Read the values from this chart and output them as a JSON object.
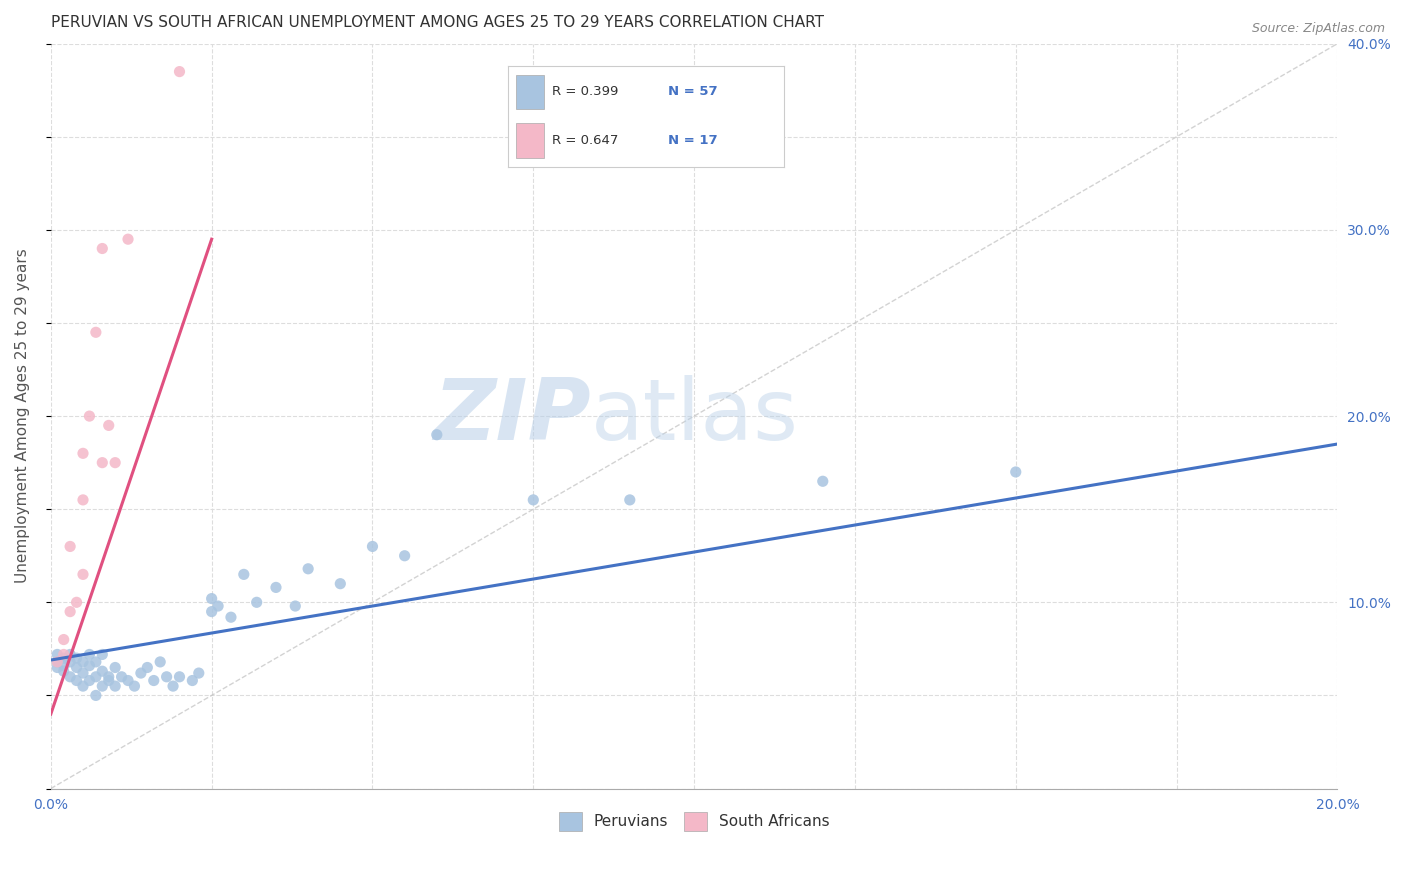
{
  "title": "PERUVIAN VS SOUTH AFRICAN UNEMPLOYMENT AMONG AGES 25 TO 29 YEARS CORRELATION CHART",
  "source_text": "Source: ZipAtlas.com",
  "ylabel": "Unemployment Among Ages 25 to 29 years",
  "xlim": [
    0.0,
    0.2
  ],
  "ylim": [
    0.0,
    0.4
  ],
  "xticks": [
    0.0,
    0.025,
    0.05,
    0.075,
    0.1,
    0.125,
    0.15,
    0.175,
    0.2
  ],
  "yticks": [
    0.0,
    0.05,
    0.1,
    0.15,
    0.2,
    0.25,
    0.3,
    0.35,
    0.4
  ],
  "peruvian_color": "#a8c4e0",
  "sa_color": "#f4b8c8",
  "peruvian_line_color": "#4472c4",
  "sa_line_color": "#e05080",
  "diagonal_line_color": "#c0c0c0",
  "R_peruvian": 0.399,
  "N_peruvian": 57,
  "R_sa": 0.647,
  "N_sa": 17,
  "legend_label_1": "Peruvians",
  "legend_label_2": "South Africans",
  "watermark_zip": "ZIP",
  "watermark_atlas": "atlas",
  "background_color": "#ffffff",
  "grid_color": "#dddddd",
  "peruvian_scatter": [
    [
      0.001,
      0.068
    ],
    [
      0.001,
      0.065
    ],
    [
      0.001,
      0.072
    ],
    [
      0.002,
      0.07
    ],
    [
      0.002,
      0.066
    ],
    [
      0.002,
      0.063
    ],
    [
      0.003,
      0.068
    ],
    [
      0.003,
      0.06
    ],
    [
      0.003,
      0.072
    ],
    [
      0.004,
      0.065
    ],
    [
      0.004,
      0.058
    ],
    [
      0.004,
      0.07
    ],
    [
      0.005,
      0.068
    ],
    [
      0.005,
      0.062
    ],
    [
      0.005,
      0.055
    ],
    [
      0.006,
      0.066
    ],
    [
      0.006,
      0.072
    ],
    [
      0.006,
      0.058
    ],
    [
      0.007,
      0.06
    ],
    [
      0.007,
      0.068
    ],
    [
      0.007,
      0.05
    ],
    [
      0.008,
      0.063
    ],
    [
      0.008,
      0.055
    ],
    [
      0.008,
      0.072
    ],
    [
      0.009,
      0.058
    ],
    [
      0.009,
      0.06
    ],
    [
      0.01,
      0.065
    ],
    [
      0.01,
      0.055
    ],
    [
      0.011,
      0.06
    ],
    [
      0.012,
      0.058
    ],
    [
      0.013,
      0.055
    ],
    [
      0.014,
      0.062
    ],
    [
      0.015,
      0.065
    ],
    [
      0.016,
      0.058
    ],
    [
      0.017,
      0.068
    ],
    [
      0.018,
      0.06
    ],
    [
      0.019,
      0.055
    ],
    [
      0.02,
      0.06
    ],
    [
      0.022,
      0.058
    ],
    [
      0.023,
      0.062
    ],
    [
      0.025,
      0.095
    ],
    [
      0.025,
      0.102
    ],
    [
      0.026,
      0.098
    ],
    [
      0.028,
      0.092
    ],
    [
      0.03,
      0.115
    ],
    [
      0.032,
      0.1
    ],
    [
      0.035,
      0.108
    ],
    [
      0.038,
      0.098
    ],
    [
      0.04,
      0.118
    ],
    [
      0.045,
      0.11
    ],
    [
      0.05,
      0.13
    ],
    [
      0.055,
      0.125
    ],
    [
      0.06,
      0.19
    ],
    [
      0.075,
      0.155
    ],
    [
      0.09,
      0.155
    ],
    [
      0.12,
      0.165
    ],
    [
      0.15,
      0.17
    ]
  ],
  "sa_scatter": [
    [
      0.001,
      0.068
    ],
    [
      0.002,
      0.072
    ],
    [
      0.002,
      0.08
    ],
    [
      0.003,
      0.095
    ],
    [
      0.003,
      0.13
    ],
    [
      0.004,
      0.1
    ],
    [
      0.005,
      0.115
    ],
    [
      0.005,
      0.155
    ],
    [
      0.005,
      0.18
    ],
    [
      0.006,
      0.2
    ],
    [
      0.007,
      0.245
    ],
    [
      0.008,
      0.29
    ],
    [
      0.008,
      0.175
    ],
    [
      0.009,
      0.195
    ],
    [
      0.01,
      0.175
    ],
    [
      0.012,
      0.295
    ],
    [
      0.02,
      0.385
    ]
  ],
  "peruvian_line": [
    [
      0.0,
      0.069
    ],
    [
      0.2,
      0.185
    ]
  ],
  "sa_line": [
    [
      0.0,
      0.04
    ],
    [
      0.025,
      0.295
    ]
  ],
  "title_fontsize": 11,
  "axis_label_fontsize": 11,
  "tick_fontsize": 10,
  "legend_fontsize": 10
}
